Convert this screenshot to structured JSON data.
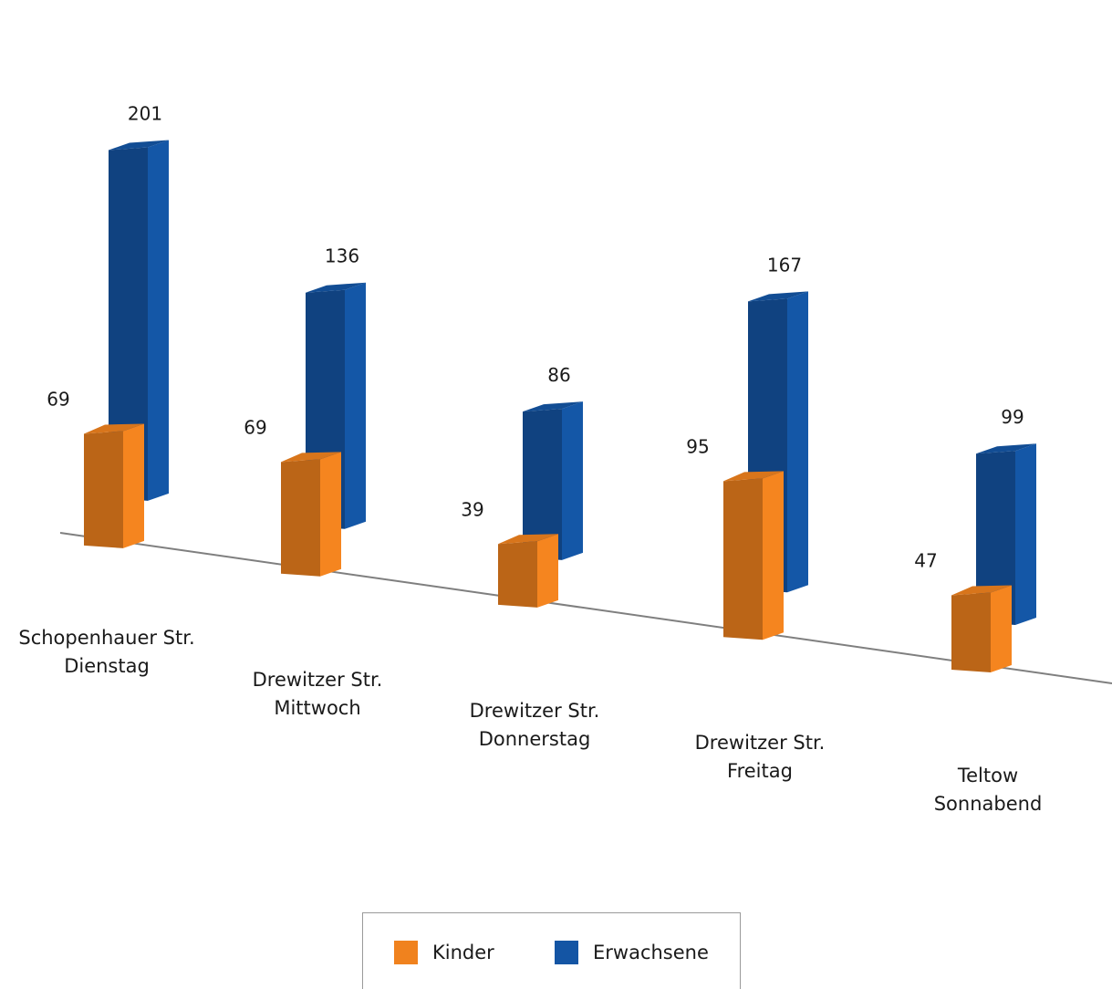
{
  "chart_data": {
    "type": "bar",
    "categories": [
      [
        "Schopenhauer Str.",
        "Dienstag"
      ],
      [
        "Drewitzer Str.",
        "Mittwoch"
      ],
      [
        "Drewitzer Str.",
        "Donnerstag"
      ],
      [
        "Drewitzer Str.",
        "Freitag"
      ],
      [
        "Teltow",
        "Sonnabend"
      ]
    ],
    "series": [
      {
        "name": "Kinder",
        "values": [
          69,
          69,
          39,
          95,
          47
        ],
        "color": "#F0821E"
      },
      {
        "name": "Erwachsene",
        "values": [
          201,
          136,
          86,
          167,
          99
        ],
        "color": "#1455A4"
      }
    ],
    "data_labels": {
      "Kinder": [
        "69",
        "69",
        "39",
        "95",
        "47"
      ],
      "Erwachsene": [
        "201",
        "136",
        "86",
        "167",
        "99"
      ]
    },
    "style": "3d-clustered-columns",
    "grid": false,
    "legend_position": "bottom"
  },
  "legend": {
    "items": [
      {
        "label": "Kinder",
        "color": "#F0821E"
      },
      {
        "label": "Erwachsene",
        "color": "#1455A4"
      }
    ]
  }
}
